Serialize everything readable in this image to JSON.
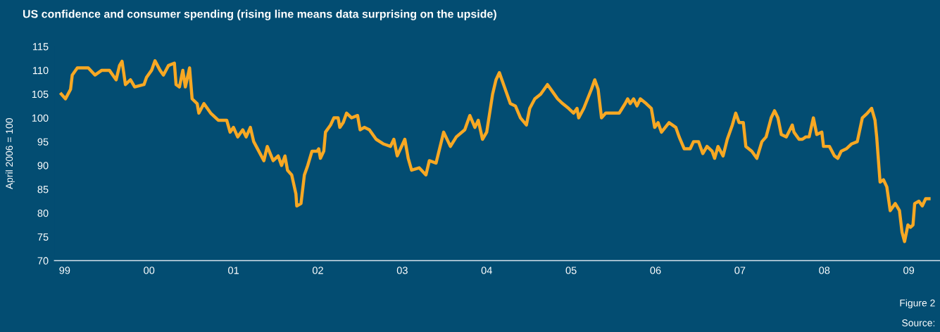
{
  "chart_data": {
    "type": "line",
    "title": "US confidence and consumer spending (rising line means data surprising on the upside)",
    "ylabel": "April 2006 = 100",
    "annotations": [
      "Figure 2",
      "Source:"
    ],
    "xlim": [
      1998.88,
      2009.37
    ],
    "xticks": [
      {
        "value": 1999,
        "label": "99"
      },
      {
        "value": 2000,
        "label": "00"
      },
      {
        "value": 2001,
        "label": "01"
      },
      {
        "value": 2002,
        "label": "02"
      },
      {
        "value": 2003,
        "label": "03"
      },
      {
        "value": 2004,
        "label": "04"
      },
      {
        "value": 2005,
        "label": "05"
      },
      {
        "value": 2006,
        "label": "06"
      },
      {
        "value": 2007,
        "label": "07"
      },
      {
        "value": 2008,
        "label": "08"
      },
      {
        "value": 2009,
        "label": "09"
      }
    ],
    "ylim": [
      70,
      115
    ],
    "yticks": [
      70,
      75,
      80,
      85,
      90,
      95,
      100,
      105,
      110,
      115
    ],
    "grid": false,
    "marker": "none",
    "line_style": "solid",
    "series": [
      {
        "color": "#f7a823",
        "x": [
          1998.96,
          1999.01,
          1999.07,
          1999.09,
          1999.15,
          1999.28,
          1999.36,
          1999.44,
          1999.53,
          1999.61,
          1999.65,
          1999.68,
          1999.72,
          1999.78,
          1999.83,
          1999.94,
          1999.97,
          2000.03,
          2000.07,
          2000.13,
          2000.17,
          2000.23,
          2000.3,
          2000.32,
          2000.36,
          2000.4,
          2000.43,
          2000.48,
          2000.51,
          2000.57,
          2000.59,
          2000.65,
          2000.73,
          2000.82,
          2000.92,
          2000.96,
          2001.0,
          2001.05,
          2001.11,
          2001.15,
          2001.2,
          2001.24,
          2001.3,
          2001.36,
          2001.4,
          2001.47,
          2001.53,
          2001.57,
          2001.61,
          2001.64,
          2001.69,
          2001.74,
          2001.75,
          2001.8,
          2001.84,
          2001.88,
          2001.93,
          2001.99,
          2002.01,
          2002.03,
          2002.07,
          2002.09,
          2002.15,
          2002.19,
          2002.24,
          2002.26,
          2002.3,
          2002.34,
          2002.4,
          2002.47,
          2002.5,
          2002.55,
          2002.61,
          2002.69,
          2002.78,
          2002.86,
          2002.9,
          2002.94,
          2003.03,
          2003.07,
          2003.11,
          2003.2,
          2003.28,
          2003.32,
          2003.4,
          2003.49,
          2003.57,
          2003.64,
          2003.74,
          2003.8,
          2003.86,
          2003.9,
          2003.95,
          2004.0,
          2004.07,
          2004.11,
          2004.15,
          2004.2,
          2004.24,
          2004.28,
          2004.34,
          2004.4,
          2004.47,
          2004.51,
          2004.57,
          2004.64,
          2004.72,
          2004.78,
          2004.84,
          2004.9,
          2004.97,
          2005.03,
          2005.07,
          2005.09,
          2005.15,
          2005.24,
          2005.28,
          2005.32,
          2005.36,
          2005.41,
          2005.47,
          2005.57,
          2005.64,
          2005.67,
          2005.7,
          2005.74,
          2005.78,
          2005.82,
          2005.89,
          2005.95,
          2005.99,
          2006.03,
          2006.07,
          2006.16,
          2006.24,
          2006.28,
          2006.34,
          2006.41,
          2006.45,
          2006.51,
          2006.56,
          2006.61,
          2006.67,
          2006.7,
          2006.74,
          2006.8,
          2006.85,
          2006.91,
          2006.95,
          2006.99,
          2007.04,
          2007.07,
          2007.14,
          2007.2,
          2007.26,
          2007.31,
          2007.37,
          2007.41,
          2007.45,
          2007.49,
          2007.55,
          2007.62,
          2007.64,
          2007.7,
          2007.74,
          2007.78,
          2007.82,
          2007.87,
          2007.91,
          2007.97,
          2007.99,
          2008.06,
          2008.12,
          2008.16,
          2008.2,
          2008.26,
          2008.32,
          2008.39,
          2008.45,
          2008.51,
          2008.56,
          2008.6,
          2008.62,
          2008.66,
          2008.7,
          2008.74,
          2008.78,
          2008.84,
          2008.89,
          2008.92,
          2008.95,
          2008.99,
          2009.02,
          2009.05,
          2009.07,
          2009.12,
          2009.16,
          2009.2,
          2009.24
        ],
        "values": [
          105,
          104,
          106,
          109,
          110.5,
          110.5,
          109,
          110,
          110,
          108,
          111,
          111.9,
          107,
          108,
          106.5,
          107,
          108.5,
          110,
          112,
          110,
          109,
          111,
          111.5,
          107,
          106.5,
          110,
          106.5,
          110.5,
          104,
          103,
          101,
          103,
          101,
          99.5,
          99.5,
          97,
          98,
          96,
          97.5,
          96,
          98,
          95,
          93,
          91,
          94,
          91,
          92,
          90,
          92,
          89,
          88,
          84,
          81.5,
          82,
          88,
          90,
          93,
          93,
          93.5,
          91.5,
          93,
          97,
          98.5,
          100,
          100,
          98,
          99,
          101,
          100,
          100.5,
          97.5,
          98,
          97.5,
          95.5,
          94.5,
          94,
          95.5,
          92,
          95.5,
          91.5,
          89,
          89.5,
          88,
          91,
          90.5,
          97,
          94,
          96,
          97.5,
          100.5,
          98,
          99.5,
          95.5,
          97,
          105,
          108,
          109.5,
          107,
          105,
          103,
          102.5,
          100,
          98.5,
          102,
          104,
          105,
          107,
          105.5,
          104,
          103,
          102,
          101,
          102,
          100,
          102,
          106,
          108,
          106,
          100,
          101,
          101,
          101,
          103,
          104,
          103,
          104,
          102.5,
          104,
          103,
          102,
          98,
          99,
          97,
          99,
          98,
          96,
          93.5,
          93.5,
          95,
          95,
          92.5,
          94,
          93,
          91.5,
          94,
          92,
          95.5,
          98.5,
          101,
          99,
          99,
          94,
          93,
          91.5,
          95,
          96,
          100,
          101.5,
          100,
          96.5,
          96,
          98.5,
          97,
          95.5,
          95.5,
          96,
          96,
          100,
          96.5,
          97,
          94,
          94,
          92,
          91.5,
          93,
          93.5,
          94.5,
          95,
          100,
          101,
          102,
          99.5,
          96,
          86.5,
          87,
          85.5,
          80.5,
          82,
          80.5,
          76,
          74,
          77.5,
          77,
          77.5,
          82,
          82.5,
          81.5,
          83,
          83
        ]
      }
    ]
  }
}
